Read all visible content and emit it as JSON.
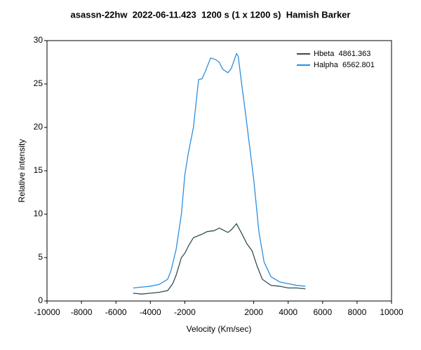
{
  "chart_data": {
    "type": "line",
    "title": "asassn-22hw  2022-06-11.423  1200 s (1 x 1200 s)  Hamish Barker",
    "xlabel": "Velocity (Km/sec)",
    "ylabel": "Relative intensity",
    "xlim": [
      -10000,
      10000
    ],
    "ylim": [
      0,
      30
    ],
    "xticks": [
      -10000,
      -8000,
      -6000,
      -4000,
      -2000,
      2000,
      4000,
      6000,
      8000,
      10000
    ],
    "yticks": [
      0,
      5,
      10,
      15,
      20,
      25,
      30
    ],
    "grid": false,
    "legend": "upper right",
    "series": [
      {
        "name": "Hbeta  4861.363",
        "color": "#2f4f4f",
        "x": [
          -5000,
          -4500,
          -4000,
          -3500,
          -3000,
          -2700,
          -2500,
          -2200,
          -2000,
          -1800,
          -1500,
          -1000,
          -700,
          -300,
          0,
          200,
          500,
          700,
          1000,
          1300,
          1600,
          1900,
          2200,
          2500,
          3000,
          3500,
          4000,
          4500,
          5000
        ],
        "values": [
          0.9,
          0.8,
          0.9,
          1.0,
          1.2,
          2.0,
          3.0,
          5.0,
          5.5,
          6.3,
          7.3,
          7.7,
          8.0,
          8.1,
          8.4,
          8.2,
          7.9,
          8.2,
          8.9,
          7.8,
          6.6,
          5.8,
          4.0,
          2.5,
          1.8,
          1.7,
          1.5,
          1.5,
          1.4
        ]
      },
      {
        "name": "Halpha  6562.801",
        "color": "#2b8fe0",
        "x": [
          -5000,
          -4500,
          -4000,
          -3500,
          -3000,
          -2800,
          -2500,
          -2200,
          -2000,
          -1800,
          -1500,
          -1200,
          -1000,
          -800,
          -500,
          -200,
          0,
          200,
          500,
          700,
          1000,
          1100,
          1300,
          1500,
          2000,
          2300,
          2600,
          3000,
          3500,
          4000,
          4500,
          5000
        ],
        "values": [
          1.5,
          1.6,
          1.7,
          1.9,
          2.5,
          3.5,
          6.0,
          10.0,
          14.5,
          17.0,
          20.0,
          25.5,
          25.6,
          26.5,
          28.0,
          27.8,
          27.5,
          26.7,
          26.3,
          26.8,
          28.5,
          28.2,
          25.0,
          22.0,
          14.0,
          8.0,
          4.5,
          2.8,
          2.2,
          2.0,
          1.8,
          1.7
        ]
      }
    ]
  }
}
